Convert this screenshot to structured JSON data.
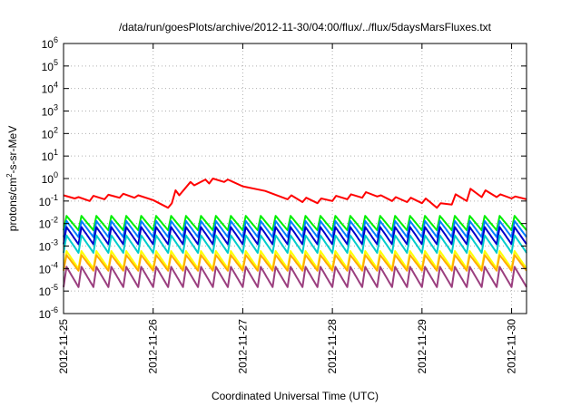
{
  "chart_data": {
    "type": "line",
    "title": "/data/run/goesPlots/archive/2012-11-30/04:00/flux/../flux/5daysMarsFluxes.txt",
    "xlabel": "Coordinated Universal Time (UTC)",
    "ylabel": {
      "base": "protons/cm",
      "sup": "2",
      "rest": "-s-sr-MeV"
    },
    "scale": {
      "y": "log",
      "x": "time"
    },
    "xlim": [
      "2012-11-25T00:00",
      "2012-11-30T04:00"
    ],
    "ylim": [
      1e-06,
      1000000.0
    ],
    "grid": true,
    "legend": "none",
    "x_ticks": [
      "2012-11-25",
      "2012-11-26",
      "2012-11-27",
      "2012-11-28",
      "2012-11-29",
      "2012-11-30"
    ],
    "y_ticks": [
      {
        "value": 1e-06,
        "base": "10",
        "exp": "-6"
      },
      {
        "value": 1e-05,
        "base": "10",
        "exp": "-5"
      },
      {
        "value": 0.0001,
        "base": "10",
        "exp": "-4"
      },
      {
        "value": 0.001,
        "base": "10",
        "exp": "-3"
      },
      {
        "value": 0.01,
        "base": "10",
        "exp": "-2"
      },
      {
        "value": 0.1,
        "base": "10",
        "exp": "-1"
      },
      {
        "value": 1,
        "base": "10",
        "exp": "0"
      },
      {
        "value": 10.0,
        "base": "10",
        "exp": "1"
      },
      {
        "value": 100.0,
        "base": "10",
        "exp": "2"
      },
      {
        "value": 1000.0,
        "base": "10",
        "exp": "3"
      },
      {
        "value": 10000.0,
        "base": "10",
        "exp": "4"
      },
      {
        "value": 100000.0,
        "base": "10",
        "exp": "5"
      },
      {
        "value": 1000000.0,
        "base": "10",
        "exp": "6"
      }
    ],
    "series": [
      {
        "color": "#ff0000",
        "x": [
          "2012-11-25T00:00",
          "2012-11-25T03:00",
          "2012-11-25T04:00",
          "2012-11-25T07:00",
          "2012-11-25T08:00",
          "2012-11-25T11:00",
          "2012-11-25T12:00",
          "2012-11-25T15:00",
          "2012-11-25T16:00",
          "2012-11-25T19:00",
          "2012-11-25T20:00",
          "2012-11-26T00:00",
          "2012-11-26T04:00",
          "2012-11-26T05:00",
          "2012-11-26T06:00",
          "2012-11-26T07:00",
          "2012-11-26T10:00",
          "2012-11-26T11:00",
          "2012-11-26T14:00",
          "2012-11-26T15:00",
          "2012-11-26T16:00",
          "2012-11-26T19:00",
          "2012-11-26T20:00",
          "2012-11-27T00:00",
          "2012-11-27T06:00",
          "2012-11-27T12:00",
          "2012-11-27T13:00",
          "2012-11-27T16:00",
          "2012-11-27T17:00",
          "2012-11-27T20:00",
          "2012-11-27T21:00",
          "2012-11-28T00:00",
          "2012-11-28T01:00",
          "2012-11-28T04:00",
          "2012-11-28T05:00",
          "2012-11-28T08:00",
          "2012-11-28T09:00",
          "2012-11-28T12:00",
          "2012-11-28T13:00",
          "2012-11-28T16:00",
          "2012-11-28T17:00",
          "2012-11-28T20:00",
          "2012-11-28T21:00",
          "2012-11-29T00:00",
          "2012-11-29T01:00",
          "2012-11-29T04:00",
          "2012-11-29T05:00",
          "2012-11-29T08:00",
          "2012-11-29T09:00",
          "2012-11-29T12:00",
          "2012-11-29T13:00",
          "2012-11-29T16:00",
          "2012-11-29T17:00",
          "2012-11-29T20:00",
          "2012-11-29T21:00",
          "2012-11-30T00:00",
          "2012-11-30T01:00",
          "2012-11-30T04:00"
        ],
        "values": [
          0.18,
          0.13,
          0.15,
          0.1,
          0.17,
          0.12,
          0.19,
          0.14,
          0.21,
          0.14,
          0.18,
          0.11,
          0.05,
          0.08,
          0.3,
          0.18,
          0.7,
          0.5,
          0.9,
          0.6,
          1.0,
          0.7,
          0.9,
          0.45,
          0.28,
          0.12,
          0.18,
          0.09,
          0.14,
          0.08,
          0.13,
          0.1,
          0.17,
          0.12,
          0.2,
          0.14,
          0.25,
          0.16,
          0.18,
          0.1,
          0.15,
          0.09,
          0.14,
          0.08,
          0.13,
          0.05,
          0.08,
          0.07,
          0.2,
          0.1,
          0.35,
          0.15,
          0.3,
          0.15,
          0.2,
          0.13,
          0.16,
          0.12
        ]
      },
      {
        "color": "#00ee00",
        "baseline": 0.005,
        "peak": 0.022,
        "cycle_hours": 4,
        "x_start": "2012-11-25T00:00",
        "x_end": "2012-11-30T04:00"
      },
      {
        "color": "#0080ff",
        "baseline": 0.0025,
        "peak": 0.013,
        "cycle_hours": 4,
        "x_start": "2012-11-25T00:00",
        "x_end": "2012-11-30T04:00"
      },
      {
        "color": "#0000cc",
        "baseline": 0.0012,
        "peak": 0.007,
        "cycle_hours": 4,
        "x_start": "2012-11-25T00:00",
        "x_end": "2012-11-30T04:00"
      },
      {
        "color": "#00cccc",
        "baseline": 0.0005,
        "peak": 0.003,
        "cycle_hours": 4,
        "x_start": "2012-11-25T00:00",
        "x_end": "2012-11-30T04:00"
      },
      {
        "color": "#ffff00",
        "baseline": 0.0001,
        "peak": 0.0006,
        "cycle_hours": 4,
        "x_start": "2012-11-25T00:00",
        "x_end": "2012-11-30T04:00"
      },
      {
        "color": "#ffaa00",
        "baseline": 8e-05,
        "peak": 0.0004,
        "cycle_hours": 4,
        "x_start": "2012-11-25T00:00",
        "x_end": "2012-11-30T04:00"
      },
      {
        "color": "#9b3f7f",
        "baseline": 1.5e-05,
        "peak": 0.00012,
        "cycle_hours": 4,
        "x_start": "2012-11-25T00:00",
        "x_end": "2012-11-30T04:00"
      }
    ]
  }
}
